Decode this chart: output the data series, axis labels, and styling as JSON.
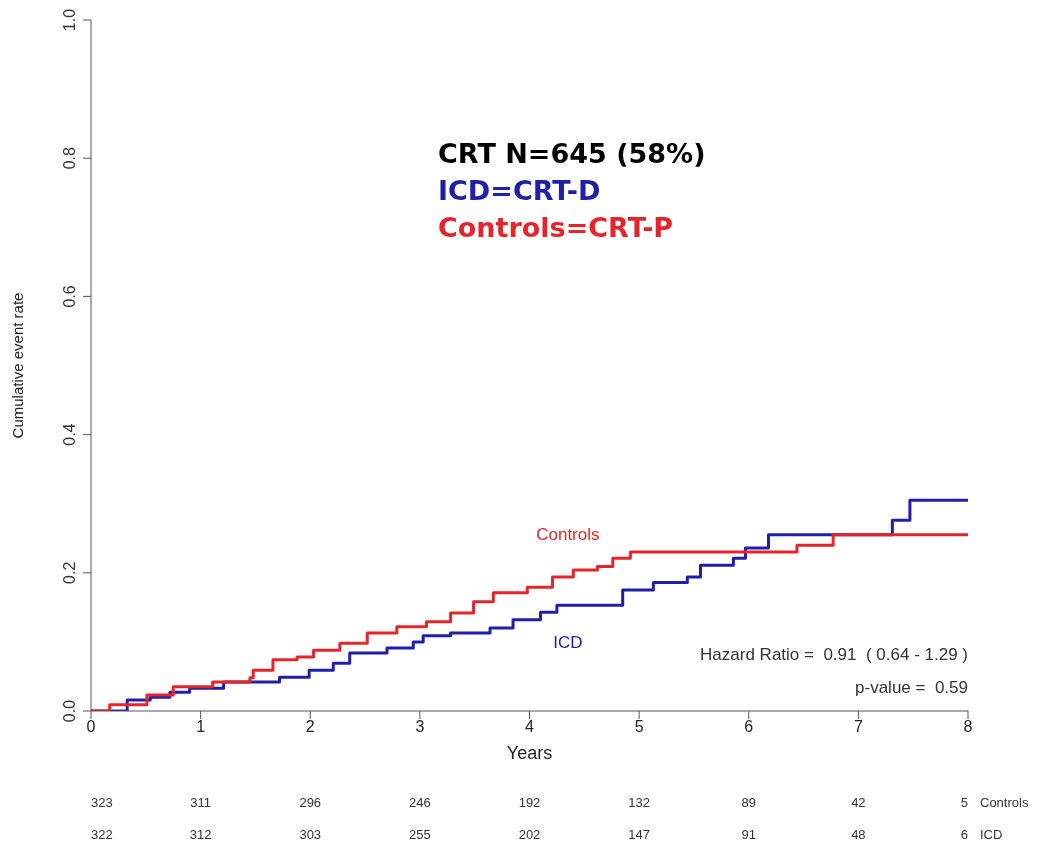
{
  "chart_data": {
    "type": "step",
    "xlabel": "Years",
    "ylabel": "Cumulative event rate",
    "xlim": [
      0,
      8
    ],
    "xticks": [
      0,
      1,
      2,
      3,
      4,
      5,
      6,
      7,
      8
    ],
    "ylim": [
      0,
      1
    ],
    "yticks": [
      {
        "value": 0,
        "label": "0.0"
      },
      {
        "value": 0.2,
        "label": "0.2"
      },
      {
        "value": 0.4,
        "label": "0.4"
      },
      {
        "value": 0.6,
        "label": "0.6"
      },
      {
        "value": 0.8,
        "label": "0.8"
      },
      {
        "value": 1,
        "label": "1.0"
      }
    ],
    "grid": false,
    "legend": false,
    "marker": "none",
    "line_style": "solid",
    "series": [
      {
        "name": "ICD",
        "color": "#1f1fa8",
        "x": [
          0,
          0.33,
          0.54,
          0.72,
          0.9,
          1.21,
          1.72,
          1.99,
          2.21,
          2.36,
          2.7,
          2.94,
          3.03,
          3.28,
          3.64,
          3.85,
          4.1,
          4.25,
          4.85,
          5.13,
          5.44,
          5.56,
          5.86,
          5.97,
          6.18,
          7.31,
          7.47,
          8
        ],
        "values": [
          0,
          0.016,
          0.02,
          0.027,
          0.033,
          0.042,
          0.049,
          0.059,
          0.069,
          0.084,
          0.091,
          0.1,
          0.109,
          0.113,
          0.12,
          0.132,
          0.143,
          0.153,
          0.175,
          0.186,
          0.194,
          0.211,
          0.221,
          0.236,
          0.255,
          0.276,
          0.305,
          0.305
        ]
      },
      {
        "name": "Controls",
        "color": "#e3262c",
        "x": [
          0,
          0.17,
          0.51,
          0.75,
          1.11,
          1.45,
          1.48,
          1.66,
          1.88,
          2.03,
          2.27,
          2.52,
          2.79,
          3.06,
          3.28,
          3.49,
          3.67,
          3.98,
          4.21,
          4.4,
          4.62,
          4.76,
          4.92,
          6.44,
          6.77,
          8
        ],
        "values": [
          0,
          0.009,
          0.023,
          0.035,
          0.042,
          0.048,
          0.059,
          0.074,
          0.078,
          0.088,
          0.098,
          0.113,
          0.122,
          0.129,
          0.142,
          0.158,
          0.171,
          0.179,
          0.194,
          0.204,
          0.209,
          0.221,
          0.23,
          0.24,
          0.255,
          0.255
        ]
      }
    ],
    "annotations": [
      "CRT N=645 (58%)",
      "ICD=CRT-D",
      "Controls=CRT-P",
      "Hazard Ratio =  0.91  ( 0.64 - 1.29 )",
      "p-value =  0.59",
      "323 311 296 246 192 132 89 42 5 Controls",
      "322 312 303 255 202 147 91 48 6 ICD"
    ]
  }
}
